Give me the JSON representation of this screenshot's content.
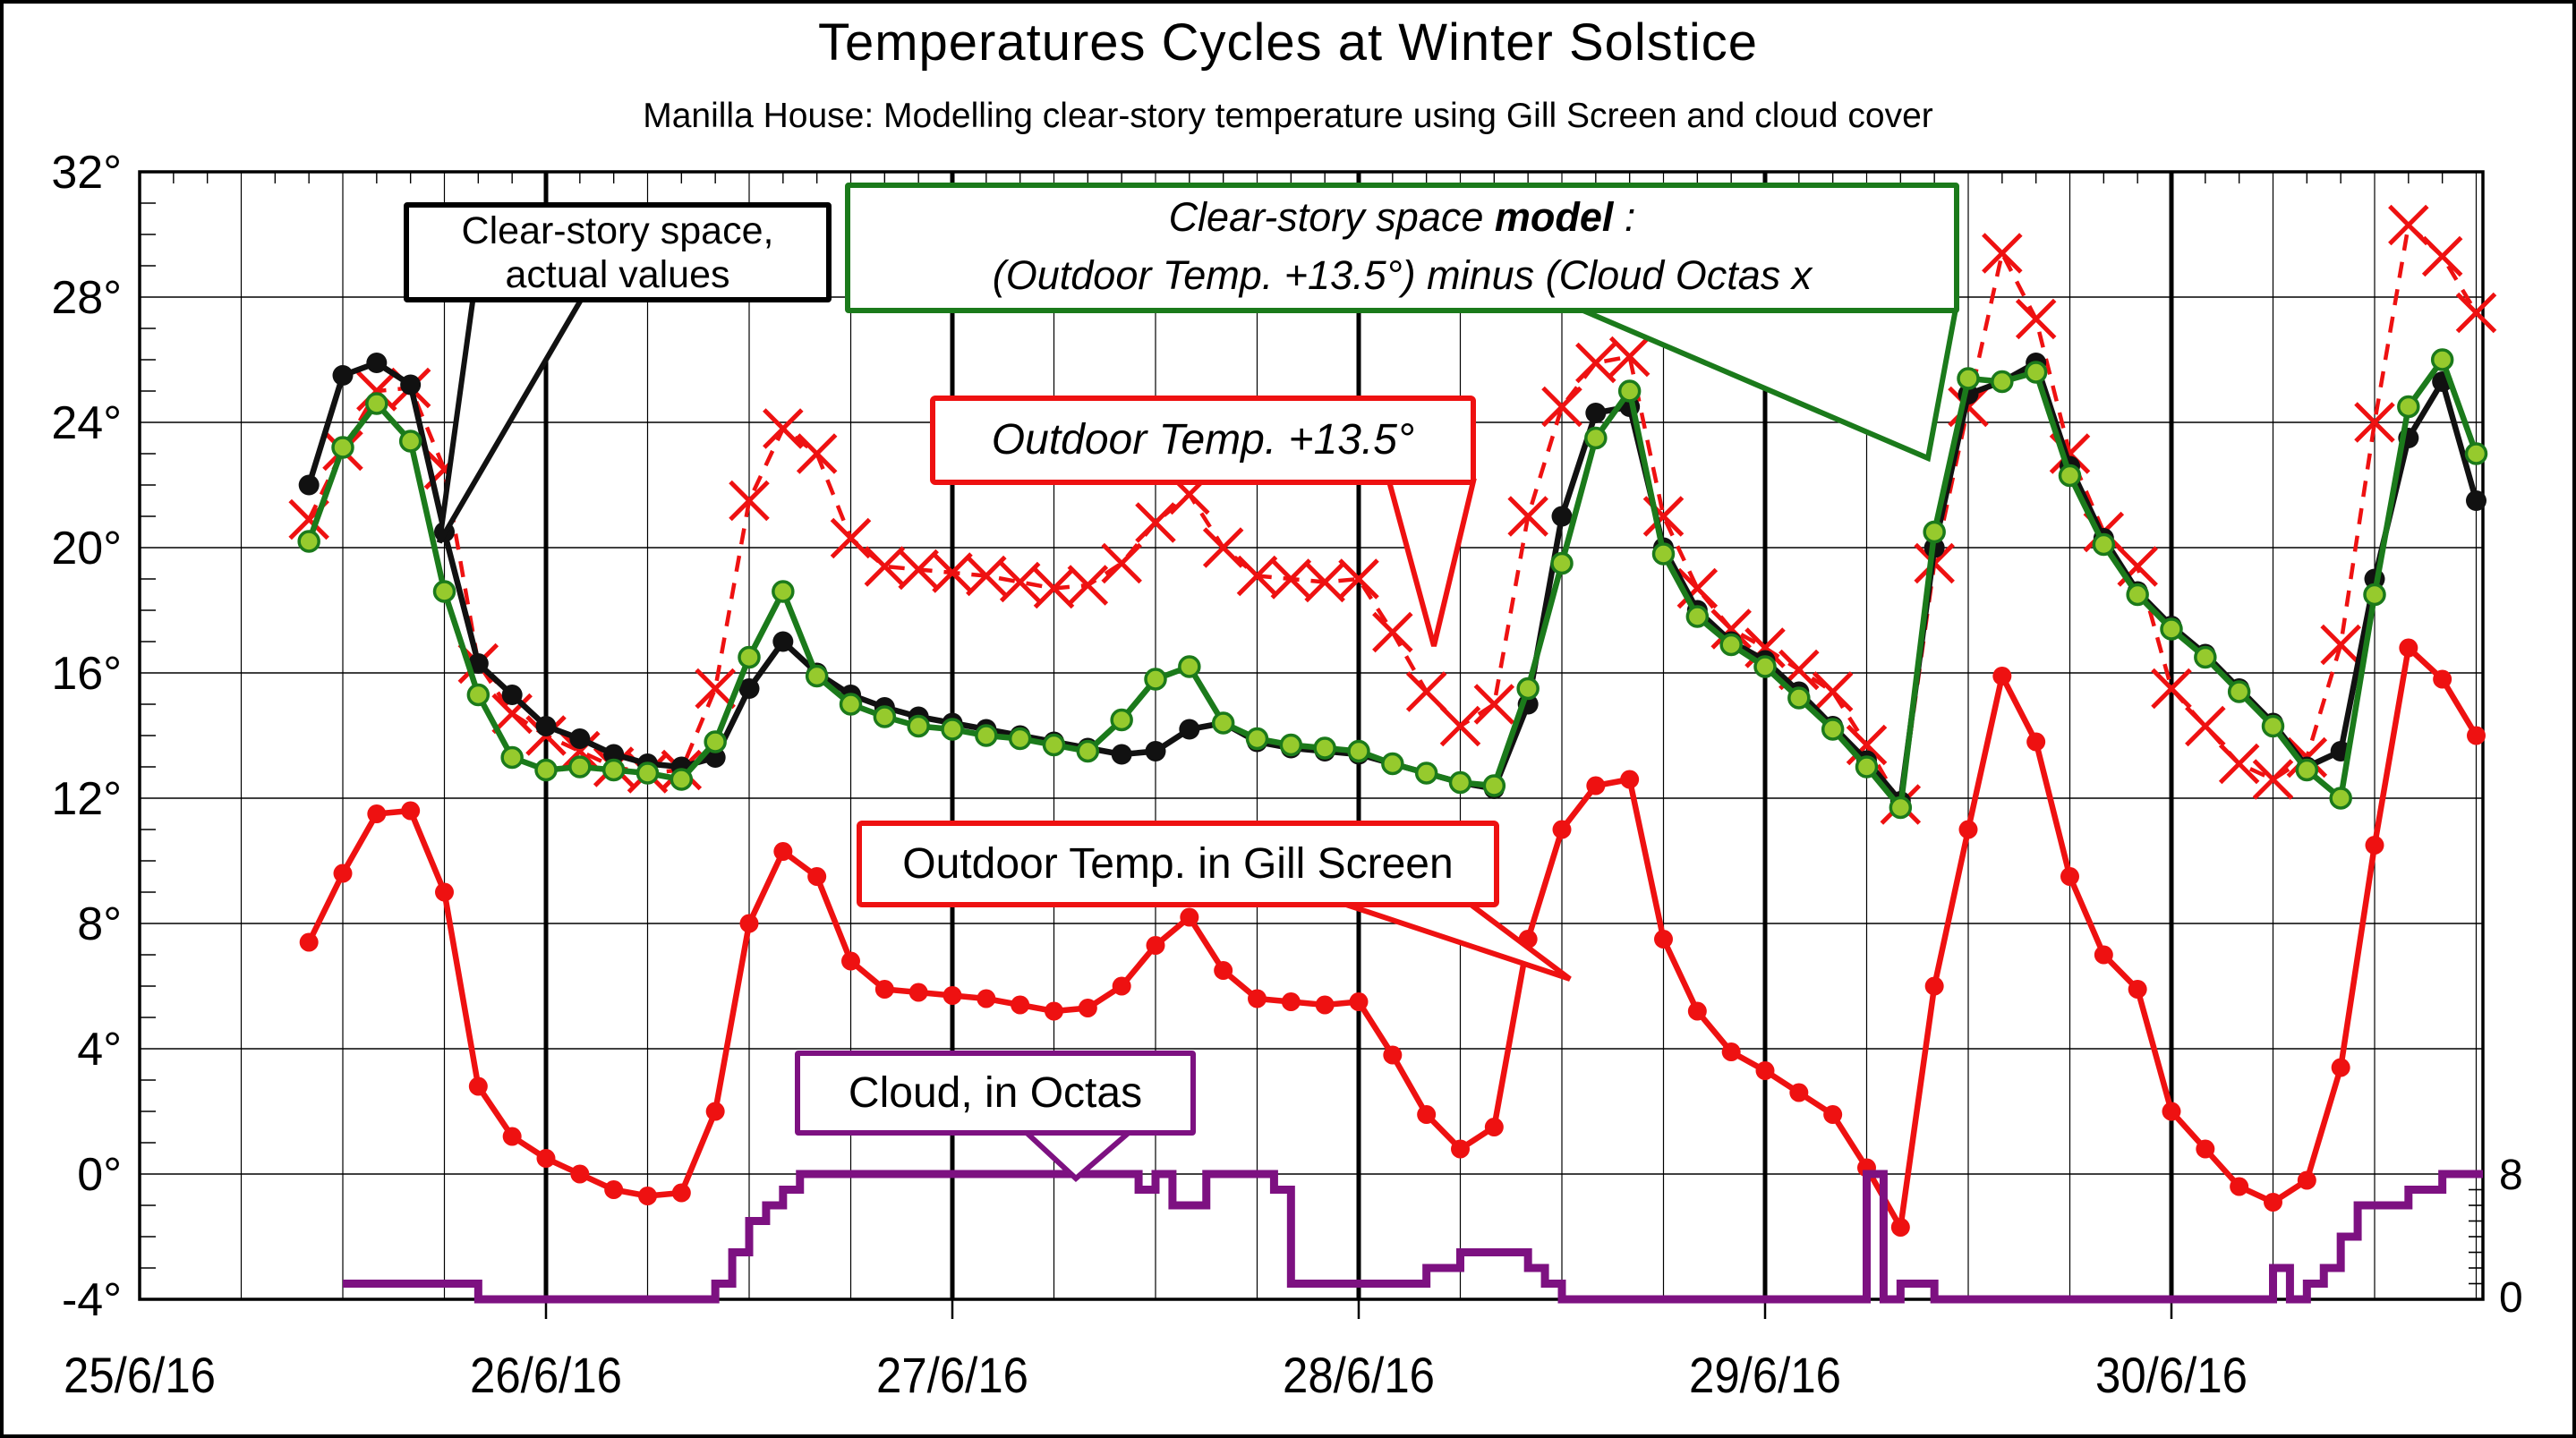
{
  "title": "Temperatures Cycles at Winter Solstice",
  "subtitle": "Manilla House: Modelling clear-story temperature using Gill Screen and cloud cover",
  "colors": {
    "actual": "#111111",
    "model_line": "#1b7a1b",
    "model_marker_fill": "#96ca2d",
    "outdoor_plus135": "#ee1111",
    "gill": "#ee1111",
    "cloud": "#7d1181",
    "grid": "#000000"
  },
  "annotations": {
    "actual": {
      "line1": "Clear-story space,",
      "line2": "actual values"
    },
    "model": {
      "line1_prefix": "Clear-story space ",
      "line1_bold": "model",
      "line1_suffix": " :",
      "line2": "(Outdoor Temp.  +13.5°) minus (Cloud Octas x"
    },
    "outdoor_plus135": {
      "label": "Outdoor Temp. +13.5°"
    },
    "gill": {
      "label": "Outdoor Temp. in Gill Screen"
    },
    "cloud": {
      "label": "Cloud, in Octas"
    }
  },
  "chart_data": {
    "type": "line",
    "title": "Temperatures Cycles at Winter Solstice",
    "subtitle": "Manilla House: Modelling clear-story temperature using Gill Screen and cloud cover",
    "x_axis": {
      "tick_labels": [
        "25/6/16",
        "26/6/16",
        "27/6/16",
        "28/6/16",
        "29/6/16",
        "30/6/16"
      ],
      "hours_per_label": 24,
      "minor_gridline_hours": 6,
      "major_gridline_hours": 24,
      "span_hours": 138.4
    },
    "y_left": {
      "unit": "°C",
      "min": -4,
      "max": 32,
      "tick_step": 4,
      "tick_labels": [
        "32°",
        "28°",
        "24°",
        "20°",
        "16°",
        "12°",
        "8°",
        "4°",
        "0°",
        "-4°"
      ]
    },
    "y_right": {
      "unit": "octas",
      "min": 0,
      "max": 8,
      "tick_labels": [
        "8",
        "0"
      ]
    },
    "grid": true,
    "legend_position": "callout-boxes",
    "series": [
      {
        "id": "dashed",
        "name": "Outdoor Temp. +13.5°",
        "color": "#ee1111",
        "axis": "left",
        "line": "dashed",
        "marker": "x",
        "start_hour": 10,
        "step_hours": 2,
        "values": [
          20.9,
          23.1,
          25.0,
          25.1,
          22.5,
          16.3,
          14.7,
          14.0,
          13.5,
          13.0,
          12.8,
          12.9,
          15.5,
          21.5,
          23.8,
          23.0,
          20.3,
          19.4,
          19.3,
          19.2,
          19.1,
          18.9,
          18.7,
          18.8,
          19.5,
          20.8,
          21.7,
          20.0,
          19.1,
          19.0,
          18.9,
          19.0,
          17.3,
          15.4,
          14.3,
          15.0,
          21.0,
          24.5,
          25.9,
          26.1,
          21.0,
          18.7,
          17.4,
          16.8,
          16.1,
          15.4,
          13.7,
          11.8,
          19.5,
          24.5,
          29.4,
          27.3,
          23.0,
          20.5,
          19.4,
          15.5,
          14.3,
          13.1,
          12.6,
          13.3,
          16.9,
          24.0,
          30.3,
          29.3,
          27.5
        ]
      },
      {
        "id": "gill",
        "name": "Outdoor Temp. in Gill Screen",
        "color": "#ee1111",
        "axis": "left",
        "line": "solid",
        "marker": "dot",
        "start_hour": 10,
        "step_hours": 2,
        "values": [
          7.4,
          9.6,
          11.5,
          11.6,
          9.0,
          2.8,
          1.2,
          0.5,
          0.0,
          -0.5,
          -0.7,
          -0.6,
          2.0,
          8.0,
          10.3,
          9.5,
          6.8,
          5.9,
          5.8,
          5.7,
          5.6,
          5.4,
          5.2,
          5.3,
          6.0,
          7.3,
          8.2,
          6.5,
          5.6,
          5.5,
          5.4,
          5.5,
          3.8,
          1.9,
          0.8,
          1.5,
          7.5,
          11.0,
          12.4,
          12.6,
          7.5,
          5.2,
          3.9,
          3.3,
          2.6,
          1.9,
          0.2,
          -1.7,
          6.0,
          11.0,
          15.9,
          13.8,
          9.5,
          7.0,
          5.9,
          2.0,
          0.8,
          -0.4,
          -0.9,
          -0.2,
          3.4,
          10.5,
          16.8,
          15.8,
          14.0
        ]
      },
      {
        "id": "actual",
        "name": "Clear-story space, actual values",
        "color": "#111111",
        "axis": "left",
        "line": "solid",
        "marker": "dot",
        "start_hour": 10,
        "step_hours": 2,
        "values": [
          22.0,
          25.5,
          25.9,
          25.2,
          20.5,
          16.3,
          15.3,
          14.3,
          13.9,
          13.4,
          13.1,
          13.0,
          13.3,
          15.5,
          17.0,
          16.0,
          15.3,
          14.9,
          14.6,
          14.4,
          14.2,
          14.0,
          13.8,
          13.6,
          13.4,
          13.5,
          14.2,
          14.4,
          13.8,
          13.6,
          13.5,
          13.4,
          13.1,
          12.8,
          12.5,
          12.3,
          15.0,
          21.0,
          24.3,
          24.5,
          20.0,
          18.0,
          17.0,
          16.4,
          15.4,
          14.3,
          13.2,
          11.9,
          20.0,
          24.9,
          25.3,
          25.9,
          22.6,
          20.3,
          18.6,
          17.5,
          16.6,
          15.5,
          14.4,
          13.0,
          13.5,
          19.0,
          23.5,
          25.3,
          21.5
        ]
      },
      {
        "id": "model",
        "name": "Clear-story space model: (Outdoor Temp. +13.5°) minus (Cloud Octas x",
        "color": "#1b7a1b",
        "axis": "left",
        "line": "solid",
        "marker": "dot-green",
        "start_hour": 10,
        "step_hours": 2,
        "values": [
          20.2,
          23.2,
          24.6,
          23.4,
          18.6,
          15.3,
          13.3,
          12.9,
          13.0,
          12.9,
          12.8,
          12.6,
          13.8,
          16.5,
          18.6,
          15.9,
          15.0,
          14.6,
          14.3,
          14.2,
          14.0,
          13.9,
          13.7,
          13.5,
          14.5,
          15.8,
          16.2,
          14.4,
          13.9,
          13.7,
          13.6,
          13.5,
          13.1,
          12.8,
          12.5,
          12.4,
          15.5,
          19.5,
          23.5,
          25.0,
          19.8,
          17.8,
          16.9,
          16.2,
          15.2,
          14.2,
          13.0,
          11.7,
          20.5,
          25.4,
          25.3,
          25.6,
          22.3,
          20.1,
          18.5,
          17.4,
          16.5,
          15.4,
          14.3,
          12.9,
          12.0,
          18.5,
          24.5,
          26.0,
          23.0
        ]
      },
      {
        "id": "cloud",
        "name": "Cloud, in Octas",
        "color": "#7d1181",
        "axis": "right",
        "line": "step",
        "marker": "none",
        "start_hour": 12,
        "step_hours": 1,
        "values": [
          1,
          1,
          1,
          1,
          1,
          1,
          1,
          1,
          0,
          0,
          0,
          0,
          0,
          0,
          0,
          0,
          0,
          0,
          0,
          0,
          0,
          0,
          1,
          3,
          5,
          6,
          7,
          8,
          8,
          8,
          8,
          8,
          8,
          8,
          8,
          8,
          8,
          8,
          8,
          8,
          8,
          8,
          8,
          8,
          8,
          8,
          8,
          7,
          8,
          6,
          6,
          8,
          8,
          8,
          8,
          7,
          1,
          1,
          1,
          1,
          1,
          1,
          1,
          1,
          2,
          2,
          3,
          3,
          3,
          3,
          2,
          1,
          0,
          0,
          0,
          0,
          0,
          0,
          0,
          0,
          0,
          0,
          0,
          0,
          0,
          0,
          0,
          0,
          0,
          0,
          8,
          0,
          1,
          1,
          0,
          0,
          0,
          0,
          0,
          0,
          0,
          0,
          0,
          0,
          0,
          0,
          0,
          0,
          0,
          0,
          0,
          0,
          0,
          0,
          2,
          0,
          1,
          2,
          4,
          6,
          6,
          6,
          7,
          7,
          8,
          8,
          8
        ]
      }
    ]
  }
}
